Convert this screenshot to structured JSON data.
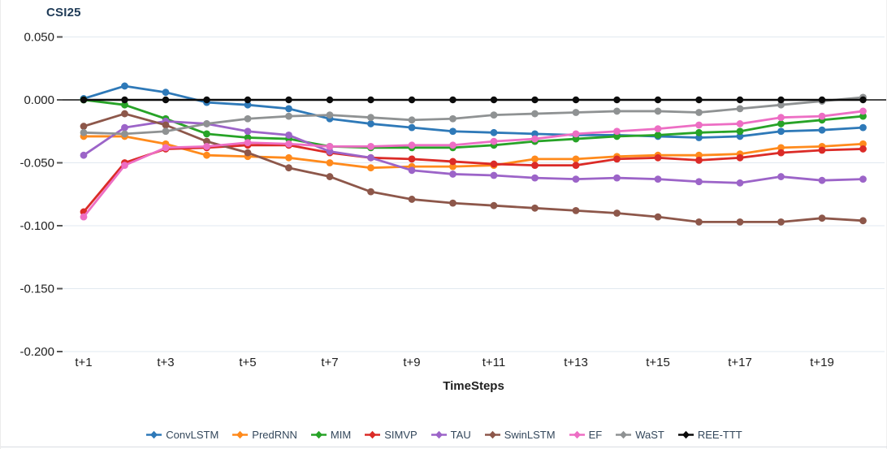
{
  "chart_data": {
    "type": "line",
    "title": "CSI25",
    "xlabel": "TimeSteps",
    "ylabel": "",
    "categories": [
      "t+1",
      "t+2",
      "t+3",
      "t+4",
      "t+5",
      "t+6",
      "t+7",
      "t+8",
      "t+9",
      "t+10",
      "t+11",
      "t+12",
      "t+13",
      "t+14",
      "t+15",
      "t+16",
      "t+17",
      "t+18",
      "t+19",
      "t+20"
    ],
    "xticks_shown": [
      "t+1",
      "t+3",
      "t+5",
      "t+7",
      "t+9",
      "t+11",
      "t+13",
      "t+15",
      "t+17",
      "t+19"
    ],
    "yticks": [
      {
        "v": 0.05,
        "label": "0.050"
      },
      {
        "v": 0.0,
        "label": "0.000"
      },
      {
        "v": -0.05,
        "label": "-0.050"
      },
      {
        "v": -0.1,
        "label": "-0.100"
      },
      {
        "v": -0.15,
        "label": "-0.150"
      },
      {
        "v": -0.2,
        "label": "-0.200"
      }
    ],
    "ylim": [
      -0.2,
      0.05
    ],
    "grid": true,
    "legend_position": "bottom",
    "series": [
      {
        "name": "ConvLSTM",
        "color": "#2E79B8",
        "values": [
          0.001,
          0.011,
          0.006,
          -0.002,
          -0.004,
          -0.007,
          -0.015,
          -0.019,
          -0.022,
          -0.025,
          -0.026,
          -0.027,
          -0.028,
          -0.028,
          -0.029,
          -0.03,
          -0.029,
          -0.025,
          -0.024,
          -0.022
        ]
      },
      {
        "name": "PredRNN",
        "color": "#FF8A1C",
        "values": [
          -0.029,
          -0.029,
          -0.035,
          -0.044,
          -0.045,
          -0.046,
          -0.05,
          -0.054,
          -0.053,
          -0.053,
          -0.052,
          -0.047,
          -0.047,
          -0.045,
          -0.044,
          -0.044,
          -0.043,
          -0.038,
          -0.037,
          -0.035
        ]
      },
      {
        "name": "MIM",
        "color": "#27A327",
        "values": [
          0.0,
          -0.004,
          -0.015,
          -0.027,
          -0.03,
          -0.031,
          -0.037,
          -0.038,
          -0.038,
          -0.038,
          -0.036,
          -0.033,
          -0.031,
          -0.029,
          -0.028,
          -0.026,
          -0.025,
          -0.019,
          -0.016,
          -0.013
        ]
      },
      {
        "name": "SIMVP",
        "color": "#DB2B27",
        "values": [
          -0.089,
          -0.05,
          -0.039,
          -0.038,
          -0.036,
          -0.036,
          -0.042,
          -0.046,
          -0.047,
          -0.049,
          -0.051,
          -0.052,
          -0.052,
          -0.047,
          -0.046,
          -0.048,
          -0.046,
          -0.042,
          -0.04,
          -0.039
        ]
      },
      {
        "name": "TAU",
        "color": "#9C64C8",
        "values": [
          -0.044,
          -0.022,
          -0.017,
          -0.019,
          -0.025,
          -0.028,
          -0.041,
          -0.046,
          -0.056,
          -0.059,
          -0.06,
          -0.062,
          -0.063,
          -0.062,
          -0.063,
          -0.065,
          -0.066,
          -0.061,
          -0.064,
          -0.063
        ]
      },
      {
        "name": "SwinLSTM",
        "color": "#8D574A",
        "values": [
          -0.021,
          -0.011,
          -0.02,
          -0.033,
          -0.042,
          -0.054,
          -0.061,
          -0.073,
          -0.079,
          -0.082,
          -0.084,
          -0.086,
          -0.088,
          -0.09,
          -0.093,
          -0.097,
          -0.097,
          -0.097,
          -0.094,
          -0.096
        ]
      },
      {
        "name": "EF",
        "color": "#ED6EC4",
        "values": [
          -0.093,
          -0.052,
          -0.038,
          -0.037,
          -0.034,
          -0.035,
          -0.037,
          -0.037,
          -0.036,
          -0.036,
          -0.033,
          -0.031,
          -0.027,
          -0.025,
          -0.023,
          -0.02,
          -0.019,
          -0.014,
          -0.013,
          -0.009
        ]
      },
      {
        "name": "WaST",
        "color": "#8F9293",
        "values": [
          -0.026,
          -0.027,
          -0.025,
          -0.019,
          -0.015,
          -0.013,
          -0.012,
          -0.014,
          -0.016,
          -0.015,
          -0.012,
          -0.011,
          -0.01,
          -0.009,
          -0.009,
          -0.01,
          -0.007,
          -0.004,
          -0.001,
          0.002
        ]
      },
      {
        "name": "REE-TTT",
        "color": "#0B0B0B",
        "values": [
          0,
          0,
          0,
          0,
          0,
          0,
          0,
          0,
          0,
          0,
          0,
          0,
          0,
          0,
          0,
          0,
          0,
          0,
          0,
          0
        ]
      }
    ],
    "colors": {
      "grid": "#E1E9F0",
      "zero_line": "#4A4A4A",
      "axis_text": "#1F1F1F",
      "title_text": "#1E3A56",
      "legend_text": "#33475B"
    }
  }
}
